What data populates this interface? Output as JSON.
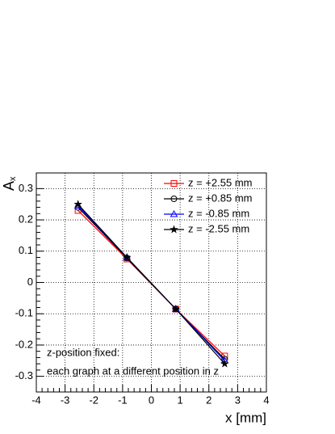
{
  "chart_data": {
    "type": "line",
    "y_label": "A",
    "y_label_subscript": "x",
    "x_label": "x [mm]",
    "annotations": [
      "z-position fixed:",
      "each graph at a different position in z"
    ],
    "xlim": [
      -4,
      4
    ],
    "xticks": [
      -4,
      -3,
      -2,
      -1,
      0,
      1,
      2,
      3,
      4
    ],
    "ylim": [
      -0.35,
      0.35
    ],
    "yticks": [
      0.3,
      0.2,
      0.1,
      0,
      -0.1,
      -0.2,
      -0.3
    ],
    "grid": true,
    "legend": "top-right",
    "series": [
      {
        "name": "z = +2.55 mm",
        "color": "#ff0000",
        "marker": "square",
        "x": [
          -2.55,
          -0.85,
          0.85,
          2.55
        ],
        "values": [
          0.23,
          0.075,
          -0.085,
          -0.235
        ]
      },
      {
        "name": "z = +0.85 mm",
        "color": "#000000",
        "marker": "circle",
        "x": [
          -2.55,
          -0.85,
          0.85,
          2.55
        ],
        "values": [
          0.24,
          0.078,
          -0.085,
          -0.245
        ]
      },
      {
        "name": "z = -0.85 mm",
        "color": "#0000ff",
        "marker": "triangle",
        "x": [
          -2.55,
          -0.85,
          0.85,
          2.55
        ],
        "values": [
          0.245,
          0.08,
          -0.085,
          -0.25
        ]
      },
      {
        "name": "z = -2.55 mm",
        "color": "#000000",
        "marker": "star",
        "x": [
          -2.55,
          -0.85,
          0.85,
          2.55
        ],
        "values": [
          0.25,
          0.08,
          -0.085,
          -0.26
        ]
      }
    ]
  }
}
